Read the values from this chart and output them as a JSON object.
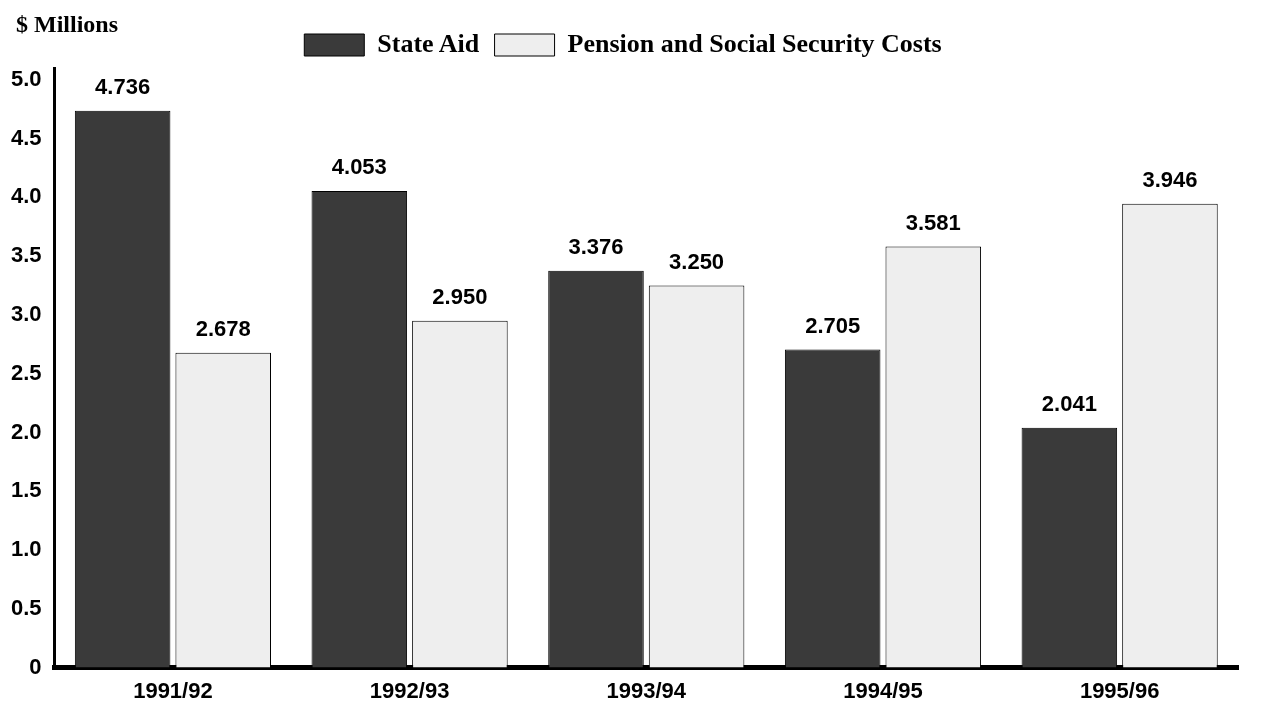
{
  "chart_data": {
    "type": "bar",
    "ylabel": "$ Millions",
    "categories": [
      "1991/92",
      "1992/93",
      "1993/94",
      "1994/95",
      "1995/96"
    ],
    "series": [
      {
        "name": "State Aid",
        "color": "#3a3a3a",
        "values": [
          4.736,
          4.053,
          3.376,
          2.705,
          2.041
        ],
        "value_labels": [
          "4.736",
          "4.053",
          "3.376",
          "2.705",
          "2.041"
        ]
      },
      {
        "name": "Pension and Social Security Costs",
        "color": "#eeeeee",
        "values": [
          2.678,
          2.95,
          3.25,
          3.581,
          3.946
        ],
        "value_labels": [
          "2.678",
          "2.950",
          "3.250",
          "3.581",
          "3.946"
        ]
      }
    ],
    "ylim": [
      0,
      5.1
    ],
    "yticks": [
      {
        "value": 0,
        "label": "0"
      },
      0.5,
      {
        "value": 1,
        "label": "1.0"
      },
      1.5,
      {
        "value": 2,
        "label": "2.0"
      },
      2.5,
      {
        "value": 3,
        "label": "3.0"
      },
      3.5,
      {
        "value": 4,
        "label": "4.0"
      },
      4.5,
      {
        "value": 5,
        "label": "5.0"
      }
    ],
    "grid": false,
    "legend": "top"
  }
}
